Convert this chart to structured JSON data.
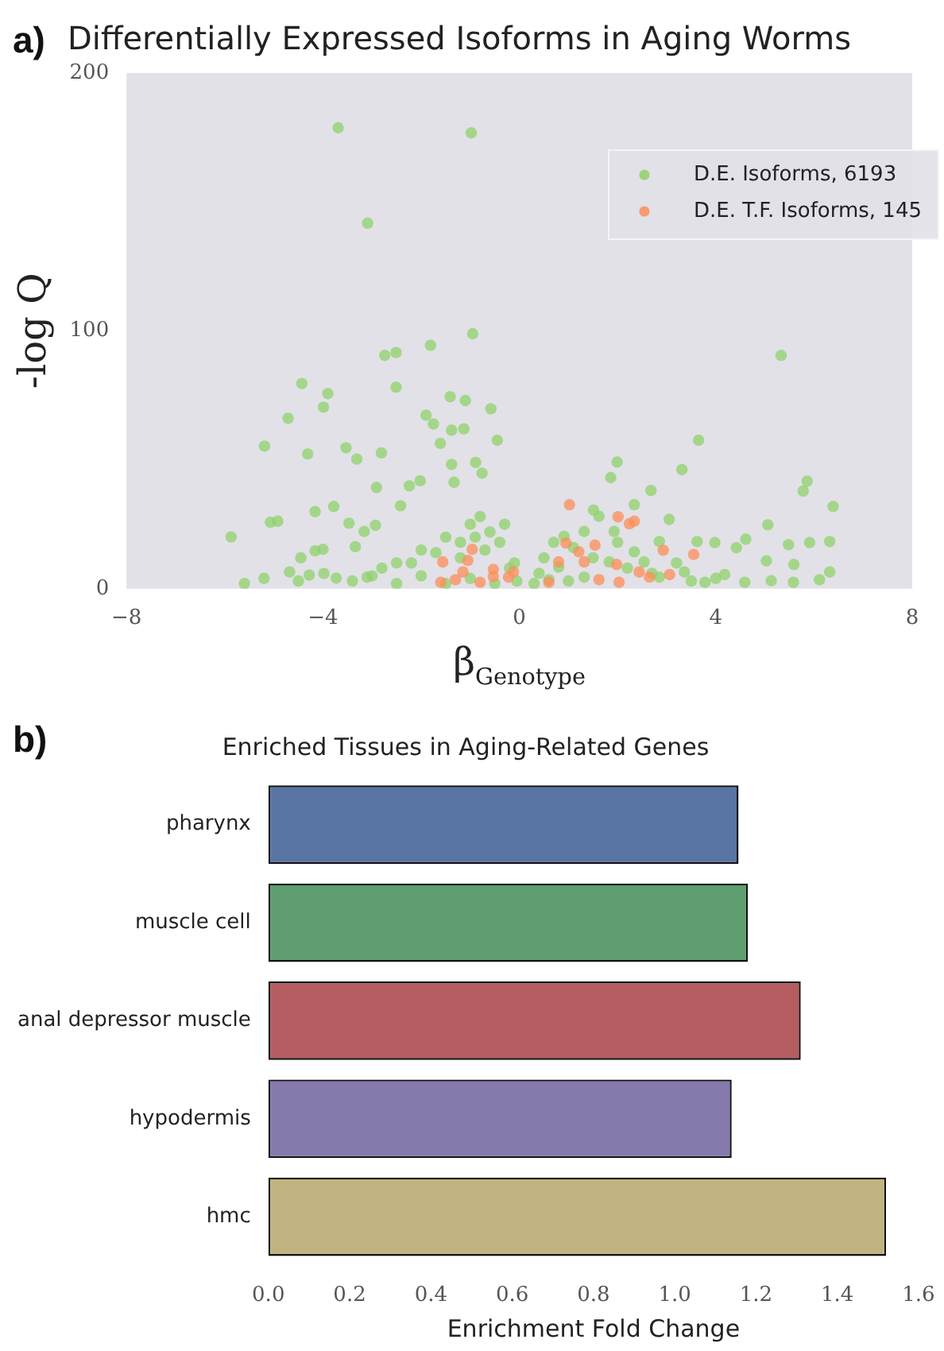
{
  "chart_data": [
    {
      "type": "scatter",
      "title": "Differentially Expressed Isoforms in Aging Worms",
      "xlabel": "β$_{Genotype}$",
      "ylabel": "-log Q",
      "annotations": [
        "a)"
      ],
      "xlim": [
        -8,
        8
      ],
      "xticks": [
        {
          "value": -8,
          "label": "−8"
        },
        {
          "value": -4,
          "label": "−4"
        },
        0,
        4,
        8
      ],
      "ylim": [
        0,
        200
      ],
      "yticks": [
        0,
        100,
        200
      ],
      "legend": "top right",
      "marker": "circle",
      "series": [
        {
          "name": "D.E. Isoforms, 6193",
          "color": "#8fd16b",
          "x": [
            -3.69,
            -0.98,
            -3.09,
            -0.95,
            -1.81,
            -2.51,
            -2.74,
            -2.51,
            -4.43,
            -3.9,
            -3.99,
            -4.71,
            -1.41,
            -1.1,
            -0.58,
            -1.9,
            -1.75,
            -1.38,
            -1.13,
            -0.45,
            -1.61,
            -5.19,
            -4.31,
            -3.53,
            -3.31,
            -2.81,
            -1.38,
            -0.89,
            -0.76,
            -2.91,
            -2.24,
            -2.02,
            -1.33,
            -3.78,
            -4.16,
            -2.42,
            -5.07,
            -4.92,
            -5.87,
            -3.47,
            -3.16,
            -2.93,
            -3.34,
            -4.16,
            -4.0,
            -4.45,
            -4.68,
            -4.28,
            -3.98,
            -3.73,
            -3.1,
            -2.5,
            -2.0,
            -1.5,
            -1.0,
            -0.5,
            -0.2,
            -0.4,
            -0.3,
            -0.6,
            -0.8,
            -0.9,
            -1.2,
            -1.7,
            -2.2,
            -2.8,
            -3.4,
            -4.5,
            -5.2,
            -5.6,
            -0.1,
            -0.05,
            -1.0,
            -1.5,
            -2.0,
            -2.5,
            -3.0,
            -0.7,
            -1.2,
            5.33,
            3.65,
            1.99,
            1.86,
            3.31,
            2.68,
            5.86,
            5.78,
            6.39,
            2.34,
            1.51,
            5.06,
            3.05,
            5.48,
            5.91,
            6.32,
            4.61,
            4.42,
            3.98,
            5.59,
            5.03,
            6.11,
            6.32,
            5.58,
            5.13,
            4.59,
            4.18,
            3.78,
            3.62,
            0.91,
            1.32,
            1.62,
            1.93,
            2.85,
            2.34,
            1.83,
            0.8,
            0.6,
            1.32,
            2.85,
            3.36,
            2.54,
            0.3,
            0.5,
            0.7,
            1.1,
            1.5,
            2.2,
            2.7,
            3.2,
            3.5,
            4.0,
            2.0,
            0.4,
            1.0
          ],
          "values": [
            178.8,
            176.8,
            141.8,
            98.9,
            94.4,
            91.6,
            90.5,
            78.2,
            79.6,
            75.7,
            70.4,
            66.1,
            74.5,
            73.0,
            69.8,
            67.3,
            63.9,
            61.5,
            62.0,
            57.6,
            56.4,
            55.3,
            52.3,
            54.7,
            50.3,
            52.7,
            48.2,
            49.0,
            44.8,
            39.3,
            39.9,
            41.9,
            41.3,
            31.9,
            29.9,
            32.2,
            25.8,
            26.2,
            20.1,
            25.4,
            22.2,
            24.6,
            16.3,
            14.7,
            15.3,
            12.0,
            6.5,
            5.3,
            5.9,
            4.1,
            4.5,
            2,
            5,
            2,
            4,
            2,
            8,
            18,
            25,
            22,
            28,
            20,
            18,
            14,
            10,
            8,
            3,
            3,
            4,
            2,
            10,
            3,
            25,
            20,
            15,
            10,
            5,
            15,
            12,
            90.5,
            57.6,
            49.1,
            43.1,
            46.2,
            38.1,
            41.7,
            37.9,
            31.9,
            32.6,
            30.5,
            24.8,
            26.9,
            17.1,
            17.9,
            18.3,
            19.2,
            15.9,
            17.9,
            9.4,
            10.8,
            3.5,
            6.5,
            2.5,
            3.1,
            2.5,
            5.5,
            2.5,
            18.3,
            20.3,
            22.2,
            28.1,
            22.2,
            18.3,
            14.3,
            10.4,
            8.4,
            3.5,
            4.5,
            4.5,
            6.5,
            10.4,
            2,
            12,
            18,
            16,
            12,
            8,
            6,
            10,
            3,
            4,
            18,
            6,
            3
          ]
        },
        {
          "name": "D.E. T.F. Isoforms, 145",
          "color": "#fc8d59",
          "x": [
            -1.56,
            -0.96,
            -1.05,
            -1.15,
            -1.3,
            -0.53,
            -0.22,
            -0.12,
            -0.53,
            -0.8,
            -1.6,
            1.02,
            2.01,
            2.24,
            2.34,
            0.95,
            1.54,
            1.21,
            2.93,
            3.55,
            0.8,
            1.32,
            1.98,
            2.44,
            3.06,
            0.6,
            1.62,
            2.03,
            2.65
          ],
          "values": [
            10.4,
            15.3,
            11.0,
            6.5,
            3.5,
            7.5,
            4.5,
            6.5,
            4.7,
            2.5,
            2.5,
            32.6,
            27.9,
            25.2,
            26.2,
            17.7,
            16.9,
            14.3,
            14.9,
            13.3,
            10.4,
            10.4,
            9.4,
            6.5,
            5.5,
            2.5,
            3.5,
            2.5,
            4.5
          ]
        }
      ]
    },
    {
      "type": "bar",
      "orientation": "horizontal",
      "title": "Enriched Tissues in Aging-Related Genes",
      "xlabel": "Enrichment Fold Change",
      "annotations": [
        "b)"
      ],
      "categories": [
        "pharynx",
        "muscle cell",
        "anal depressor muscle",
        "hypodermis",
        "hmc"
      ],
      "values": [
        1.157,
        1.18,
        1.31,
        1.14,
        1.52
      ],
      "colors": [
        "#5875a4",
        "#5f9e6e",
        "#b55d60",
        "#857aab",
        "#c1b37f"
      ],
      "xlim": [
        0,
        1.6
      ],
      "xticks": [
        {
          "value": 0,
          "label": "0.0"
        },
        {
          "value": 0.2,
          "label": "0.2"
        },
        {
          "value": 0.4,
          "label": "0.4"
        },
        {
          "value": 0.6,
          "label": "0.6"
        },
        {
          "value": 0.8,
          "label": "0.8"
        },
        {
          "value": 1,
          "label": "1.0"
        },
        {
          "value": 1.2,
          "label": "1.2"
        },
        {
          "value": 1.4,
          "label": "1.4"
        },
        {
          "value": 1.6,
          "label": "1.6"
        }
      ]
    }
  ]
}
